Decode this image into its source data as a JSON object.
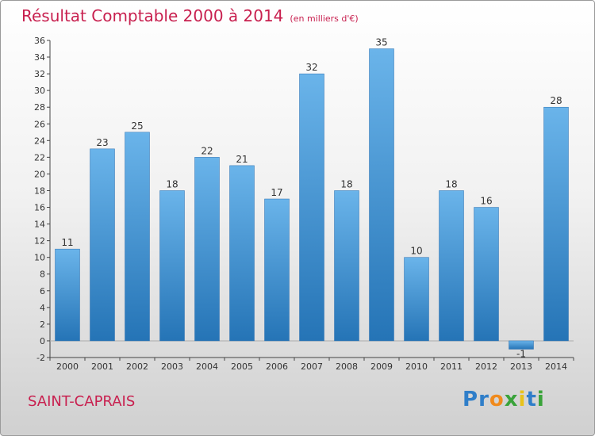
{
  "header": {
    "title": "Résultat Comptable 2000 à 2014",
    "subtitle": "(en milliers d'€)"
  },
  "footer": {
    "commune": "SAINT-CAPRAIS",
    "logo_letters": [
      {
        "char": "P",
        "color": "#2f7ec9"
      },
      {
        "char": "r",
        "color": "#2f7ec9"
      },
      {
        "char": "o",
        "color": "#f08a1c"
      },
      {
        "char": "x",
        "color": "#3aa33a"
      },
      {
        "char": "i",
        "color": "#e8c21a"
      },
      {
        "char": "t",
        "color": "#2f7ec9"
      },
      {
        "char": "i",
        "color": "#3aa33a"
      }
    ]
  },
  "colors": {
    "bar_top": "#6ab4ea",
    "bar_bottom": "#2574b6",
    "axis": "#444444",
    "text": "#333333",
    "title": "#c8204f"
  },
  "chart_data": {
    "type": "bar",
    "categories": [
      "2000",
      "2001",
      "2002",
      "2003",
      "2004",
      "2005",
      "2006",
      "2007",
      "2008",
      "2009",
      "2010",
      "2011",
      "2012",
      "2013",
      "2014"
    ],
    "values": [
      11,
      23,
      25,
      18,
      22,
      21,
      17,
      32,
      18,
      35,
      10,
      18,
      16,
      -1,
      28
    ],
    "data_labels": [
      "11",
      "23",
      "25",
      "18",
      "22",
      "21",
      "17",
      "32",
      "18",
      "35",
      "10",
      "18",
      "16",
      "-1",
      "28"
    ],
    "ylim": [
      -2,
      36
    ],
    "yticks": [
      -2,
      0,
      2,
      4,
      6,
      8,
      10,
      12,
      14,
      16,
      18,
      20,
      22,
      24,
      26,
      28,
      30,
      32,
      34,
      36
    ],
    "grid": false,
    "xlabel": "",
    "ylabel": ""
  }
}
